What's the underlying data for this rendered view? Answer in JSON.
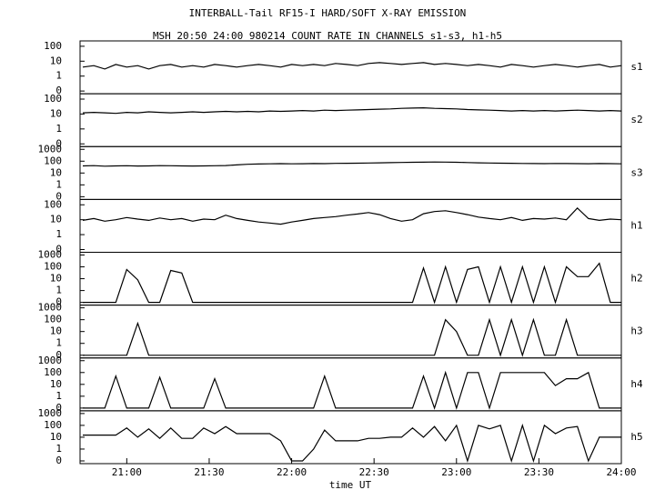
{
  "chart_data": {
    "type": "line",
    "title": "INTERBALL-Tail RF15-I HARD/SOFT X-RAY EMISSION",
    "subtitle": "MSH 20:50 24:00 980214  COUNT RATE IN CHANNELS s1-s3, h1-h5",
    "xlabel": "time UT",
    "log_scale": true,
    "color": "#000000",
    "xlim": [
      1243,
      1440
    ],
    "xticks": [
      {
        "value": 1260,
        "label": "21:00"
      },
      {
        "value": 1290,
        "label": "21:30"
      },
      {
        "value": 1320,
        "label": "22:00"
      },
      {
        "value": 1350,
        "label": "22:30"
      },
      {
        "value": 1380,
        "label": "23:00"
      },
      {
        "value": 1410,
        "label": "23:30"
      },
      {
        "value": 1440,
        "label": "24:00"
      }
    ],
    "x": [
      1244,
      1248,
      1252,
      1256,
      1260,
      1264,
      1268,
      1272,
      1276,
      1280,
      1284,
      1288,
      1292,
      1296,
      1300,
      1304,
      1308,
      1312,
      1316,
      1320,
      1324,
      1328,
      1332,
      1336,
      1340,
      1344,
      1348,
      1352,
      1356,
      1360,
      1364,
      1368,
      1372,
      1376,
      1380,
      1384,
      1388,
      1392,
      1396,
      1400,
      1404,
      1408,
      1412,
      1416,
      1420,
      1424,
      1428,
      1432,
      1436,
      1440
    ],
    "panels": [
      {
        "name": "s1",
        "ylim": [
          0,
          150
        ],
        "yticks": [
          0,
          1,
          10,
          100
        ],
        "values": [
          4,
          5,
          3,
          6,
          4,
          5,
          3,
          5,
          6,
          4,
          5,
          4,
          6,
          5,
          4,
          5,
          6,
          5,
          4,
          6,
          5,
          6,
          5,
          7,
          6,
          5,
          7,
          8,
          7,
          6,
          7,
          8,
          6,
          7,
          6,
          5,
          6,
          5,
          4,
          6,
          5,
          4,
          5,
          6,
          5,
          4,
          5,
          6,
          4,
          5
        ]
      },
      {
        "name": "s2",
        "ylim": [
          0,
          150
        ],
        "yticks": [
          0,
          1,
          10,
          100
        ],
        "values": [
          12,
          13,
          12,
          11,
          13,
          12,
          14,
          13,
          12,
          13,
          14,
          13,
          14,
          15,
          14,
          15,
          14,
          16,
          15,
          16,
          17,
          16,
          18,
          17,
          18,
          19,
          20,
          21,
          22,
          24,
          25,
          26,
          24,
          23,
          22,
          20,
          19,
          18,
          17,
          16,
          17,
          16,
          17,
          16,
          17,
          18,
          17,
          16,
          17,
          16
        ]
      },
      {
        "name": "s3",
        "ylim": [
          0,
          1000
        ],
        "yticks": [
          0,
          1,
          10,
          100,
          1000
        ],
        "values": [
          40,
          42,
          38,
          40,
          41,
          39,
          40,
          42,
          41,
          40,
          39,
          40,
          41,
          43,
          48,
          55,
          58,
          60,
          62,
          60,
          61,
          63,
          62,
          65,
          66,
          68,
          70,
          72,
          75,
          78,
          80,
          82,
          85,
          83,
          80,
          76,
          72,
          70,
          68,
          66,
          64,
          63,
          62,
          64,
          63,
          62,
          61,
          63,
          62,
          60
        ]
      },
      {
        "name": "h1",
        "ylim": [
          0,
          150
        ],
        "yticks": [
          0,
          1,
          10,
          100
        ],
        "values": [
          9,
          12,
          8,
          10,
          14,
          11,
          9,
          13,
          10,
          12,
          8,
          11,
          10,
          20,
          12,
          9,
          7,
          6,
          5,
          7,
          9,
          12,
          14,
          16,
          20,
          24,
          30,
          22,
          12,
          8,
          10,
          25,
          35,
          40,
          30,
          22,
          15,
          12,
          10,
          14,
          9,
          12,
          11,
          13,
          10,
          60,
          12,
          9,
          11,
          10
        ]
      },
      {
        "name": "h2",
        "ylim": [
          0,
          1000
        ],
        "yticks": [
          0,
          1,
          10,
          100,
          1000
        ],
        "values": [
          0,
          0,
          0,
          0,
          60,
          8,
          0,
          0,
          50,
          30,
          0,
          0,
          0,
          0,
          0,
          0,
          0,
          0,
          0,
          0,
          0,
          0,
          0,
          0,
          0,
          0,
          0,
          0,
          0,
          0,
          0,
          80,
          0,
          100,
          0,
          60,
          100,
          0,
          100,
          0,
          100,
          0,
          100,
          0,
          100,
          15,
          15,
          200,
          0,
          0
        ]
      },
      {
        "name": "h3",
        "ylim": [
          0,
          1000
        ],
        "yticks": [
          0,
          1,
          10,
          100,
          1000
        ],
        "values": [
          0,
          0,
          0,
          0,
          0,
          50,
          0,
          0,
          0,
          0,
          0,
          0,
          0,
          0,
          0,
          0,
          0,
          0,
          0,
          0,
          0,
          0,
          0,
          0,
          0,
          0,
          0,
          0,
          0,
          0,
          0,
          0,
          0,
          100,
          10,
          0,
          0,
          100,
          0,
          100,
          0,
          100,
          0,
          0,
          100,
          0,
          0,
          0,
          0,
          0
        ]
      },
      {
        "name": "h4",
        "ylim": [
          0,
          1000
        ],
        "yticks": [
          0,
          1,
          10,
          100,
          1000
        ],
        "values": [
          0,
          0,
          0,
          50,
          0,
          0,
          0,
          40,
          0,
          0,
          0,
          0,
          30,
          0,
          0,
          0,
          0,
          0,
          0,
          0,
          0,
          0,
          50,
          0,
          0,
          0,
          0,
          0,
          0,
          0,
          0,
          50,
          0,
          100,
          0,
          100,
          100,
          0,
          100,
          100,
          100,
          100,
          100,
          8,
          30,
          30,
          100,
          0,
          0,
          0
        ]
      },
      {
        "name": "h5",
        "ylim": [
          0,
          1000
        ],
        "yticks": [
          0,
          1,
          10,
          100,
          1000
        ],
        "values": [
          15,
          15,
          15,
          15,
          60,
          10,
          50,
          8,
          60,
          8,
          8,
          60,
          20,
          80,
          20,
          20,
          20,
          20,
          5,
          0,
          0,
          1,
          40,
          5,
          5,
          5,
          8,
          8,
          10,
          10,
          60,
          10,
          80,
          5,
          100,
          0,
          100,
          50,
          100,
          0,
          100,
          0,
          100,
          20,
          60,
          80,
          0,
          10,
          10,
          10
        ]
      }
    ]
  }
}
